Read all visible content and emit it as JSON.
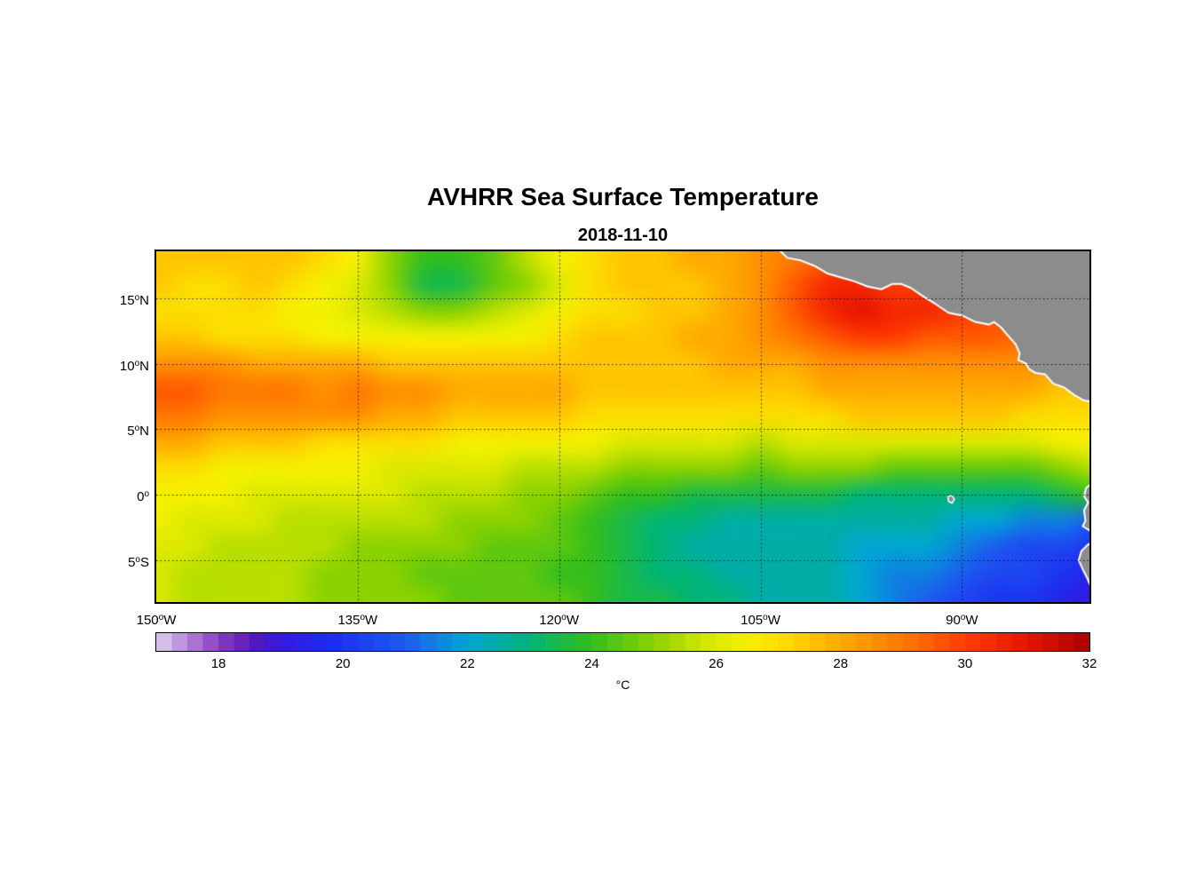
{
  "title": "AVHRR Sea Surface Temperature",
  "subtitle": "2018-11-10",
  "chart_data": {
    "type": "heatmap",
    "title": "AVHRR Sea Surface Temperature",
    "subtitle": "2018-11-10",
    "degree_symbol": "o",
    "x_axis": {
      "range": [
        -150,
        -80.5
      ],
      "ticks": [
        {
          "value": -150,
          "num": "150",
          "dir": "W"
        },
        {
          "value": -135,
          "num": "135",
          "dir": "W"
        },
        {
          "value": -120,
          "num": "120",
          "dir": "W"
        },
        {
          "value": -105,
          "num": "105",
          "dir": "W"
        },
        {
          "value": -90,
          "num": "90",
          "dir": "W"
        }
      ]
    },
    "y_axis": {
      "range": [
        -8.2,
        18.6
      ],
      "ticks": [
        {
          "value": 15,
          "num": "15",
          "dir": "N"
        },
        {
          "value": 10,
          "num": "10",
          "dir": "N"
        },
        {
          "value": 5,
          "num": "5",
          "dir": "N"
        },
        {
          "value": 0,
          "num": "0",
          "dir": ""
        },
        {
          "value": -5,
          "num": "5",
          "dir": "S"
        }
      ]
    },
    "grid": {
      "style": "dotted",
      "color": "#000000"
    },
    "lon": [
      -150,
      -147.5,
      -145,
      -142.5,
      -140,
      -137.5,
      -135,
      -132.5,
      -130,
      -127.5,
      -125,
      -122.5,
      -120,
      -117.5,
      -115,
      -112.5,
      -110,
      -107.5,
      -105,
      -102.5,
      -100,
      -97.5,
      -95,
      -92.5,
      -90,
      -87.5,
      -85,
      -82.5,
      -80
    ],
    "lat": [
      18,
      16,
      14,
      12,
      10,
      8,
      6,
      4,
      2,
      0,
      -2,
      -4,
      -6,
      -8
    ],
    "sst": [
      [
        27.5,
        27.5,
        27.5,
        27.5,
        27.5,
        27.0,
        26.5,
        25.0,
        24.0,
        24.0,
        24.5,
        25.5,
        26.5,
        27.0,
        27.5,
        27.5,
        28.0,
        28.0,
        28.5,
        29.0,
        29.5,
        30.0,
        30.0,
        29.5,
        29.5,
        29.0,
        29.0,
        28.5,
        28.5
      ],
      [
        27.5,
        27.0,
        27.0,
        27.5,
        27.0,
        26.5,
        26.0,
        25.0,
        23.5,
        23.5,
        24.5,
        25.0,
        26.0,
        27.0,
        27.5,
        27.5,
        27.5,
        28.0,
        28.5,
        29.5,
        30.5,
        30.5,
        30.0,
        30.0,
        29.5,
        29.5,
        29.0,
        29.0,
        28.5
      ],
      [
        27.0,
        27.0,
        27.0,
        27.0,
        26.5,
        26.5,
        26.0,
        25.5,
        25.0,
        25.0,
        25.5,
        26.0,
        26.5,
        27.0,
        27.0,
        27.5,
        27.5,
        28.0,
        28.5,
        29.5,
        30.5,
        31.0,
        30.5,
        30.5,
        30.0,
        29.5,
        29.0,
        29.0,
        28.5
      ],
      [
        27.5,
        27.5,
        27.0,
        27.0,
        27.0,
        26.5,
        26.5,
        26.5,
        26.5,
        26.5,
        26.5,
        26.5,
        27.0,
        27.5,
        27.5,
        27.5,
        28.0,
        28.0,
        28.5,
        29.0,
        29.5,
        30.0,
        30.0,
        29.5,
        29.5,
        29.5,
        29.0,
        28.5,
        28.5
      ],
      [
        28.5,
        28.5,
        28.5,
        28.0,
        28.0,
        28.0,
        28.0,
        27.5,
        27.5,
        27.5,
        27.5,
        27.5,
        27.5,
        27.5,
        27.5,
        27.5,
        27.5,
        28.0,
        28.0,
        28.0,
        28.5,
        28.5,
        28.5,
        28.5,
        28.5,
        28.5,
        28.5,
        28.0,
        28.0
      ],
      [
        29.5,
        29.5,
        29.0,
        29.0,
        29.0,
        28.5,
        29.0,
        28.5,
        28.5,
        28.0,
        28.0,
        28.0,
        28.0,
        27.5,
        27.5,
        27.5,
        27.5,
        27.5,
        27.5,
        27.5,
        28.0,
        28.0,
        28.0,
        28.0,
        28.0,
        28.0,
        28.0,
        27.5,
        27.5
      ],
      [
        29.0,
        29.0,
        28.5,
        28.5,
        28.5,
        28.5,
        28.5,
        28.0,
        28.0,
        27.5,
        27.5,
        27.5,
        27.5,
        27.0,
        27.0,
        27.0,
        27.0,
        27.0,
        27.0,
        27.0,
        27.0,
        27.5,
        27.5,
        27.5,
        27.5,
        27.5,
        27.0,
        27.0,
        27.0
      ],
      [
        28.0,
        28.0,
        27.5,
        27.5,
        27.5,
        27.0,
        27.0,
        27.0,
        27.0,
        26.5,
        26.5,
        26.5,
        26.5,
        26.5,
        26.0,
        26.0,
        26.0,
        26.0,
        25.5,
        26.0,
        26.0,
        26.0,
        26.0,
        26.0,
        26.0,
        26.0,
        26.0,
        26.5,
        26.5
      ],
      [
        27.0,
        27.0,
        26.5,
        26.5,
        26.5,
        26.5,
        26.5,
        26.0,
        26.0,
        26.0,
        26.0,
        25.5,
        25.5,
        25.5,
        25.0,
        25.0,
        25.0,
        25.0,
        24.5,
        25.0,
        25.0,
        25.0,
        24.5,
        24.5,
        24.5,
        24.5,
        24.5,
        25.0,
        25.5
      ],
      [
        26.5,
        26.5,
        26.5,
        26.0,
        26.0,
        26.0,
        26.0,
        26.0,
        25.5,
        25.5,
        25.5,
        25.0,
        25.0,
        24.5,
        24.0,
        24.0,
        23.5,
        23.5,
        23.5,
        23.5,
        23.5,
        23.0,
        23.0,
        23.0,
        23.0,
        23.0,
        23.0,
        23.5,
        24.0
      ],
      [
        26.5,
        26.0,
        26.0,
        26.0,
        25.5,
        25.5,
        25.5,
        25.5,
        25.5,
        25.0,
        25.0,
        25.0,
        24.5,
        24.0,
        23.5,
        23.0,
        23.0,
        22.5,
        22.5,
        22.5,
        22.5,
        22.5,
        22.5,
        22.5,
        22.0,
        22.0,
        21.5,
        21.5,
        21.0
      ],
      [
        26.0,
        26.0,
        25.5,
        25.5,
        25.5,
        25.5,
        25.0,
        25.0,
        25.0,
        25.0,
        24.5,
        24.5,
        24.5,
        24.0,
        23.5,
        23.0,
        22.5,
        22.5,
        22.5,
        22.5,
        22.5,
        22.0,
        22.0,
        22.0,
        21.5,
        21.0,
        20.5,
        20.5,
        20.0
      ],
      [
        26.0,
        25.5,
        25.5,
        25.5,
        25.5,
        25.0,
        25.0,
        25.0,
        24.5,
        24.5,
        24.5,
        24.5,
        24.0,
        24.0,
        23.5,
        23.0,
        23.0,
        22.5,
        22.5,
        22.5,
        22.5,
        22.0,
        21.5,
        21.5,
        21.0,
        20.5,
        20.5,
        20.0,
        19.5
      ],
      [
        26.0,
        25.5,
        25.5,
        25.5,
        25.5,
        25.0,
        25.0,
        25.0,
        25.0,
        24.5,
        24.5,
        24.5,
        24.5,
        24.0,
        23.5,
        23.5,
        23.0,
        23.0,
        22.5,
        22.5,
        22.5,
        22.0,
        21.5,
        21.0,
        20.5,
        20.0,
        20.0,
        19.5,
        19.0
      ]
    ],
    "colormap": {
      "range": [
        17,
        32
      ],
      "stops": [
        {
          "t": 17.0,
          "c": "#E0D2EE"
        },
        {
          "t": 17.5,
          "c": "#B583D6"
        },
        {
          "t": 18.0,
          "c": "#8A3FC0"
        },
        {
          "t": 18.5,
          "c": "#5A18B8"
        },
        {
          "t": 19.0,
          "c": "#3618E0"
        },
        {
          "t": 19.8,
          "c": "#1C2CF0"
        },
        {
          "t": 21.0,
          "c": "#1E5AF0"
        },
        {
          "t": 22.0,
          "c": "#00A6D2"
        },
        {
          "t": 23.0,
          "c": "#00B478"
        },
        {
          "t": 24.0,
          "c": "#34BE1E"
        },
        {
          "t": 25.0,
          "c": "#8CD200"
        },
        {
          "t": 25.8,
          "c": "#D2E600"
        },
        {
          "t": 26.5,
          "c": "#F5F000"
        },
        {
          "t": 27.2,
          "c": "#FFD700"
        },
        {
          "t": 28.0,
          "c": "#FFAA00"
        },
        {
          "t": 29.0,
          "c": "#FF7800"
        },
        {
          "t": 30.0,
          "c": "#FF3C00"
        },
        {
          "t": 31.0,
          "c": "#E61400"
        },
        {
          "t": 32.0,
          "c": "#A80000"
        }
      ]
    },
    "colorbar": {
      "ticks": [
        "18",
        "20",
        "22",
        "24",
        "26",
        "28",
        "30",
        "32"
      ],
      "tick_values": [
        18,
        20,
        22,
        24,
        26,
        28,
        30,
        32
      ],
      "label": "°C",
      "segments": 60
    },
    "land": {
      "color": "#8C8C8C",
      "coast_color": "#FFFFFF",
      "polygons": {
        "central_america": [
          [
            -103.5,
            18.6
          ],
          [
            -103.0,
            18.1
          ],
          [
            -102.0,
            17.9
          ],
          [
            -101.0,
            17.5
          ],
          [
            -100.0,
            16.9
          ],
          [
            -99.0,
            16.6
          ],
          [
            -98.0,
            16.3
          ],
          [
            -97.0,
            15.9
          ],
          [
            -96.0,
            15.7
          ],
          [
            -95.2,
            16.1
          ],
          [
            -94.5,
            16.1
          ],
          [
            -93.8,
            15.8
          ],
          [
            -92.8,
            15.1
          ],
          [
            -92.0,
            14.6
          ],
          [
            -91.0,
            13.9
          ],
          [
            -90.0,
            13.7
          ],
          [
            -89.0,
            13.2
          ],
          [
            -88.0,
            13.0
          ],
          [
            -87.6,
            13.2
          ],
          [
            -87.1,
            12.8
          ],
          [
            -86.6,
            12.2
          ],
          [
            -86.0,
            11.5
          ],
          [
            -85.7,
            10.8
          ],
          [
            -85.8,
            10.3
          ],
          [
            -85.2,
            10.0
          ],
          [
            -85.0,
            9.6
          ],
          [
            -84.5,
            9.3
          ],
          [
            -83.8,
            9.2
          ],
          [
            -83.2,
            8.5
          ],
          [
            -82.4,
            8.2
          ],
          [
            -81.6,
            7.6
          ],
          [
            -80.9,
            7.2
          ],
          [
            -79.8,
            7.0
          ],
          [
            -79.8,
            19.4
          ],
          [
            -103.5,
            19.4
          ]
        ],
        "south_america": [
          [
            -80.3,
            0.9
          ],
          [
            -80.75,
            0.5
          ],
          [
            -80.9,
            -0.1
          ],
          [
            -80.6,
            -0.6
          ],
          [
            -80.9,
            -1.2
          ],
          [
            -80.8,
            -2.0
          ],
          [
            -81.0,
            -2.4
          ],
          [
            -80.4,
            -2.8
          ],
          [
            -80.0,
            -3.0
          ],
          [
            -80.0,
            -3.5
          ],
          [
            -80.6,
            -3.8
          ],
          [
            -81.1,
            -4.3
          ],
          [
            -81.3,
            -5.0
          ],
          [
            -81.0,
            -5.7
          ],
          [
            -80.7,
            -6.3
          ],
          [
            -80.4,
            -7.0
          ],
          [
            -80.15,
            -7.8
          ],
          [
            -80.1,
            -8.8
          ],
          [
            -79.4,
            -8.8
          ],
          [
            -79.4,
            0.9
          ]
        ],
        "galapagos": [
          [
            -91.05,
            -0.15
          ],
          [
            -90.75,
            -0.05
          ],
          [
            -90.55,
            -0.35
          ],
          [
            -90.75,
            -0.65
          ],
          [
            -91.0,
            -0.5
          ]
        ]
      }
    }
  }
}
